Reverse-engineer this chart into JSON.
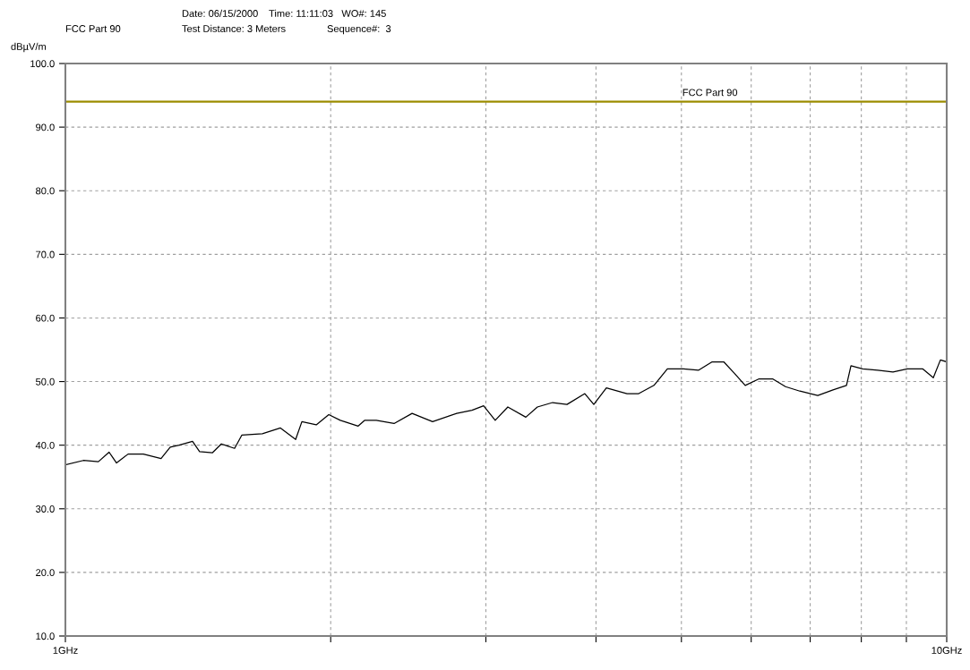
{
  "chart_data": {
    "type": "line",
    "annotations": [
      "Date: 06/15/2000",
      "Time: 11:11:03   WO#: 145",
      "FCC Part 90",
      "Test Distance: 3 Meters",
      "Sequence#:  3"
    ],
    "ylabel": "dBµV/m",
    "log": "x",
    "xlim": [
      1,
      10
    ],
    "xticks": [
      {
        "value": 1,
        "label": "1GHz"
      },
      {
        "value": 2,
        "label": null
      },
      {
        "value": 3,
        "label": null
      },
      {
        "value": 4,
        "label": null
      },
      {
        "value": 5,
        "label": null
      },
      {
        "value": 6,
        "label": null
      },
      {
        "value": 7,
        "label": null
      },
      {
        "value": 8,
        "label": null
      },
      {
        "value": 9,
        "label": null
      },
      {
        "value": 10,
        "label": "10GHz"
      }
    ],
    "ylim": [
      10,
      100
    ],
    "yticks": [
      {
        "value": 10,
        "label": "10.0"
      },
      {
        "value": 20,
        "label": "20.0"
      },
      {
        "value": 30,
        "label": "30.0"
      },
      {
        "value": 40,
        "label": "40.0"
      },
      {
        "value": 50,
        "label": "50.0"
      },
      {
        "value": 60,
        "label": "60.0"
      },
      {
        "value": 70,
        "label": "70.0"
      },
      {
        "value": 80,
        "label": "80.0"
      },
      {
        "value": 90,
        "label": "90.0"
      },
      {
        "value": 100,
        "label": "100.0"
      }
    ],
    "grid": true,
    "line_style": "solid",
    "series": [
      {
        "color": "#000000",
        "x": [
          1.0,
          1.048,
          1.09,
          1.121,
          1.143,
          1.178,
          1.226,
          1.284,
          1.315,
          1.346,
          1.394,
          1.42,
          1.468,
          1.503,
          1.556,
          1.586,
          1.673,
          1.754,
          1.825,
          1.855,
          1.926,
          1.99,
          2.051,
          2.149,
          2.185,
          2.253,
          2.36,
          2.474,
          2.61,
          2.78,
          2.893,
          2.982,
          3.074,
          3.177,
          3.33,
          3.432,
          3.571,
          3.708,
          3.885,
          3.977,
          4.11,
          4.338,
          4.472,
          4.654,
          4.82,
          5.027,
          5.231,
          5.418,
          5.585,
          5.743,
          5.907,
          6.118,
          6.351,
          6.563,
          6.813,
          7.14,
          7.43,
          7.696,
          7.787,
          8.027,
          8.352,
          8.69,
          9.021,
          9.389,
          9.656,
          9.837,
          10.0
        ],
        "values": [
          36.9,
          37.6,
          37.4,
          38.9,
          37.2,
          38.6,
          38.6,
          37.9,
          39.7,
          40.0,
          40.6,
          39.0,
          38.8,
          40.2,
          39.5,
          41.6,
          41.8,
          42.7,
          40.9,
          43.7,
          43.2,
          44.8,
          43.9,
          43.0,
          43.9,
          43.9,
          43.4,
          45.0,
          43.7,
          45.0,
          45.5,
          46.2,
          43.9,
          46.0,
          44.4,
          46.0,
          46.7,
          46.4,
          48.1,
          46.4,
          49.0,
          48.1,
          48.1,
          49.4,
          52.0,
          52.0,
          51.8,
          53.1,
          53.1,
          51.3,
          49.4,
          50.4,
          50.4,
          49.2,
          48.5,
          47.8,
          48.7,
          49.4,
          52.5,
          52.0,
          51.8,
          51.5,
          52.0,
          52.0,
          50.6,
          53.4,
          53.1
        ]
      }
    ],
    "ref_lines": [
      {
        "axis": "y",
        "value": 94,
        "label": "FCC Part 90",
        "color": "#9c8c00",
        "line_style": "solid"
      }
    ]
  }
}
